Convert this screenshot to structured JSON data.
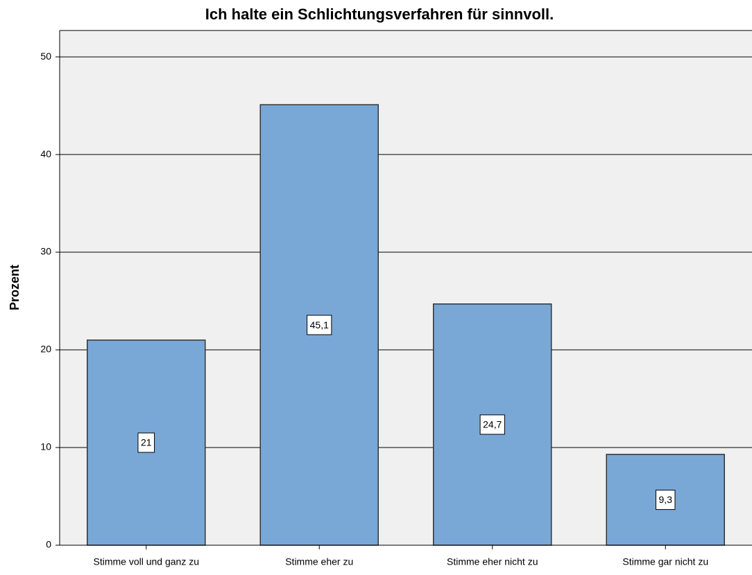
{
  "chart_data": {
    "type": "bar",
    "title": "Ich halte ein Schlichtungsverfahren für sinnvoll.",
    "y_label": "Prozent",
    "categories": [
      "Stimme voll und ganz zu",
      "Stimme eher zu",
      "Stimme eher nicht zu",
      "Stimme gar nicht zu"
    ],
    "values": [
      21,
      45.1,
      24.7,
      9.3
    ],
    "value_labels": [
      "21",
      "45,1",
      "24,7",
      "9,3"
    ],
    "color": "#79a8d6",
    "ylim": [
      0,
      52.7
    ],
    "yticks": [
      0,
      10,
      20,
      30,
      40,
      50
    ],
    "grid": true
  }
}
